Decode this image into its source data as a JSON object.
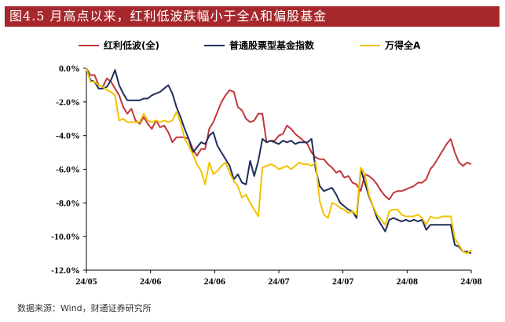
{
  "title": "图4.5 月高点以来，红利低波跌幅小于全A和偏股基金",
  "source": "数据来源：Wind，财通证券研究所",
  "chart_data": {
    "type": "line",
    "title": "图4.5 月高点以来，红利低波跌幅小于全A和偏股基金",
    "xlabel": "",
    "ylabel": "",
    "ylim": [
      -12,
      0
    ],
    "y_ticks": [
      "0.0%",
      "-2.0%",
      "-4.0%",
      "-6.0%",
      "-8.0%",
      "-10.0%",
      "-12.0%"
    ],
    "x_tick_labels": [
      "24/05",
      "24/06",
      "24/06",
      "24/07",
      "24/07",
      "24/08",
      "24/08"
    ],
    "legend_position": "top",
    "grid": false,
    "series": [
      {
        "name": "红利低波(全)",
        "color": "#c0373b",
        "values": [
          0,
          -0.4,
          -0.4,
          -1.0,
          -1.1,
          -0.6,
          -0.8,
          -1.2,
          -1.6,
          -2.3,
          -2.7,
          -2.4,
          -3.1,
          -3.3,
          -2.9,
          -3.3,
          -3.6,
          -3.1,
          -3.5,
          -3.4,
          -3.8,
          -4.4,
          -4.1,
          -4.1,
          -4.1,
          -4.2,
          -4.8,
          -5.2,
          -4.8,
          -4.8,
          -3.6,
          -3.2,
          -2.6,
          -2.0,
          -1.6,
          -1.3,
          -1.4,
          -2.3,
          -2.5,
          -3.0,
          -3.2,
          -3.1,
          -2.7,
          -2.7,
          -4.4,
          -4.3,
          -4.3,
          -4.0,
          -3.9,
          -3.4,
          -3.6,
          -3.9,
          -4.1,
          -4.3,
          -4.5,
          -5.0,
          -5.3,
          -5.4,
          -5.4,
          -5.7,
          -5.9,
          -6.2,
          -6.1,
          -6.5,
          -6.4,
          -6.8,
          -6.9,
          -7.3,
          -6.3,
          -6.4,
          -6.6,
          -6.9,
          -7.3,
          -7.6,
          -7.8,
          -7.4,
          -7.3,
          -7.3,
          -7.2,
          -7.1,
          -7.0,
          -6.8,
          -6.8,
          -6.6,
          -6.0,
          -5.7,
          -5.3,
          -4.9,
          -4.5,
          -4.2,
          -5.0,
          -5.6,
          -5.8,
          -5.6,
          -5.7
        ]
      },
      {
        "name": "普通股票型基金指数",
        "color": "#1e2e5c",
        "values": [
          0,
          -0.7,
          -0.8,
          -1.2,
          -1.2,
          -1.1,
          -0.7,
          -0.1,
          -1.0,
          -1.5,
          -1.9,
          -1.9,
          -1.9,
          -1.9,
          -1.8,
          -1.8,
          -1.6,
          -1.5,
          -1.4,
          -1.2,
          -1.0,
          -1.5,
          -2.3,
          -2.9,
          -3.6,
          -4.2,
          -5.0,
          -4.7,
          -4.4,
          -4.5,
          -4.0,
          -3.8,
          -4.6,
          -5.0,
          -5.4,
          -5.8,
          -6.6,
          -6.3,
          -6.8,
          -6.9,
          -5.5,
          -6.4,
          -5.5,
          -4.2,
          -4.4,
          -4.3,
          -4.4,
          -4.5,
          -4.3,
          -4.4,
          -4.3,
          -4.5,
          -4.4,
          -4.4,
          -4.4,
          -4.2,
          -6.0,
          -7.0,
          -7.3,
          -7.2,
          -7.1,
          -7.5,
          -8.0,
          -8.2,
          -8.4,
          -8.5,
          -8.9,
          -6.0,
          -6.8,
          -7.6,
          -8.2,
          -8.9,
          -9.3,
          -9.7,
          -9.0,
          -8.9,
          -9.0,
          -9.1,
          -9.0,
          -9.1,
          -9.0,
          -9.1,
          -9.0,
          -9.6,
          -9.3,
          -9.3,
          -9.3,
          -9.3,
          -9.3,
          -9.3,
          -10.5,
          -10.6,
          -10.9,
          -10.9,
          -11.0
        ]
      },
      {
        "name": "万得全A",
        "color": "#f2c200",
        "values": [
          0,
          -0.8,
          -0.8,
          -1.0,
          -1.1,
          -1.3,
          -1.4,
          -1.6,
          -3.1,
          -3.0,
          -3.2,
          -3.2,
          -3.2,
          -3.2,
          -2.7,
          -3.1,
          -3.2,
          -3.1,
          -3.2,
          -3.1,
          -3.2,
          -3.1,
          -2.6,
          -3.2,
          -4.2,
          -4.6,
          -5.1,
          -5.7,
          -6.1,
          -6.9,
          -5.6,
          -6.3,
          -6.1,
          -5.8,
          -5.6,
          -6.2,
          -6.7,
          -7.0,
          -7.7,
          -7.5,
          -8.0,
          -8.4,
          -8.8,
          -5.9,
          -5.8,
          -5.7,
          -5.8,
          -6.0,
          -5.9,
          -5.8,
          -6.0,
          -5.8,
          -5.6,
          -5.7,
          -5.7,
          -5.8,
          -5.6,
          -7.9,
          -8.7,
          -8.9,
          -8.0,
          -8.1,
          -8.3,
          -8.4,
          -8.6,
          -8.5,
          -8.7,
          -5.9,
          -6.3,
          -7.5,
          -8.2,
          -8.7,
          -9.0,
          -9.3,
          -8.5,
          -8.4,
          -8.4,
          -8.7,
          -8.8,
          -8.8,
          -8.8,
          -8.7,
          -8.9,
          -9.3,
          -8.8,
          -8.9,
          -8.9,
          -8.8,
          -8.8,
          -8.8,
          -10.1,
          -10.5,
          -10.9,
          -11.0,
          -10.8
        ]
      }
    ]
  }
}
